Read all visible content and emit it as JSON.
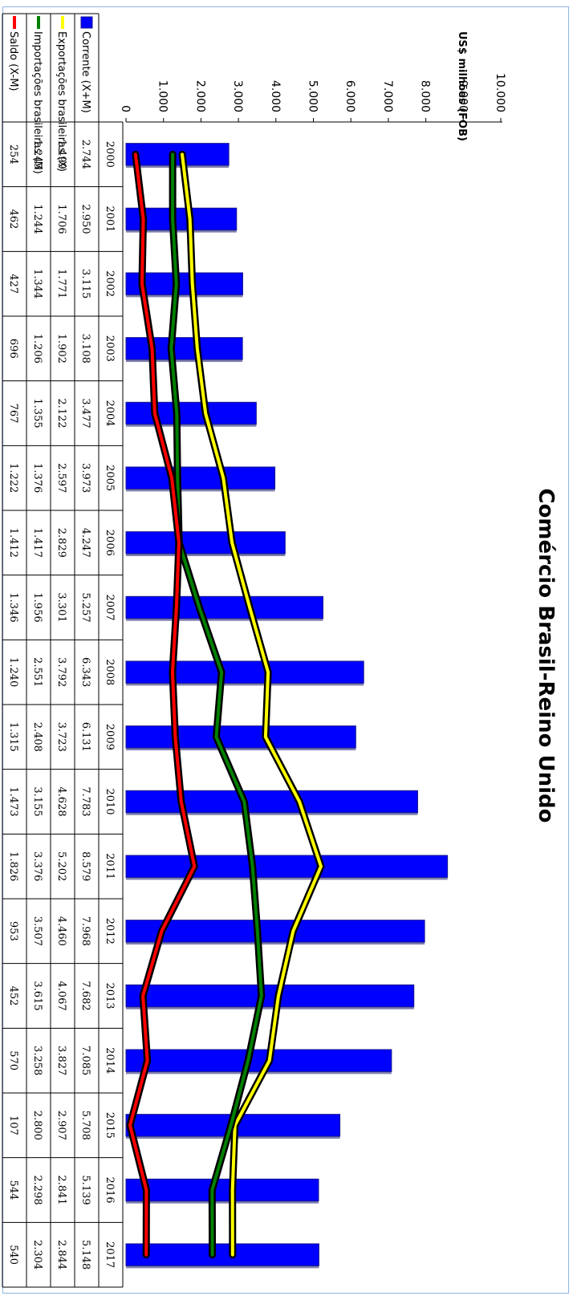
{
  "chart_data": {
    "type": "line",
    "title": "Comércio Brasil-Reino Unido",
    "ylabel": "US$ milhões (FOB)",
    "ylim": [
      0,
      10000
    ],
    "yticks": [
      "0",
      "1.000",
      "2.000",
      "3.000",
      "4.000",
      "5.000",
      "6.000",
      "7.000",
      "8.000",
      "9.000",
      "10.000"
    ],
    "categories": [
      "2000",
      "2001",
      "2002",
      "2003",
      "2004",
      "2005",
      "2006",
      "2007",
      "2008",
      "2009",
      "2010",
      "2011",
      "2012",
      "2013",
      "2014",
      "2015",
      "2016",
      "2017"
    ],
    "series": [
      {
        "name": "Corrente (X+M)",
        "kind": "bar",
        "color": "#0000ff",
        "values": [
          2744,
          2950,
          3115,
          3108,
          3477,
          3973,
          4247,
          5257,
          6343,
          6131,
          7783,
          8579,
          7968,
          7682,
          7085,
          5708,
          5139,
          5148
        ],
        "labels": [
          "2.744",
          "2.950",
          "3.115",
          "3.108",
          "3.477",
          "3.973",
          "4.247",
          "5.257",
          "6.343",
          "6.131",
          "7.783",
          "8.579",
          "7.968",
          "7.682",
          "7.085",
          "5.708",
          "5.139",
          "5.148"
        ]
      },
      {
        "name": "Exportações brasileiras (X)",
        "kind": "line",
        "color": "#ffff00",
        "values": [
          1499,
          1706,
          1771,
          1902,
          2122,
          2597,
          2829,
          3301,
          3792,
          3723,
          4628,
          5202,
          4460,
          4067,
          3827,
          2907,
          2841,
          2844
        ],
        "labels": [
          "1.499",
          "1.706",
          "1.771",
          "1.902",
          "2.122",
          "2.597",
          "2.829",
          "3.301",
          "3.792",
          "3.723",
          "4.628",
          "5.202",
          "4.460",
          "4.067",
          "3.827",
          "2.907",
          "2.841",
          "2.844"
        ]
      },
      {
        "name": "Importações brasileiras (M)",
        "kind": "line",
        "color": "#008000",
        "values": [
          1245,
          1244,
          1344,
          1206,
          1355,
          1376,
          1417,
          1956,
          2551,
          2408,
          3155,
          3376,
          3507,
          3615,
          3258,
          2800,
          2298,
          2304
        ],
        "labels": [
          "1.245",
          "1.244",
          "1.344",
          "1.206",
          "1.355",
          "1.376",
          "1.417",
          "1.956",
          "2.551",
          "2.408",
          "3.155",
          "3.376",
          "3.507",
          "3.615",
          "3.258",
          "2.800",
          "2.298",
          "2.304"
        ]
      },
      {
        "name": "Saldo (X-M)",
        "kind": "line",
        "color": "#ff0000",
        "values": [
          254,
          462,
          427,
          696,
          767,
          1222,
          1412,
          1346,
          1240,
          1315,
          1473,
          1826,
          953,
          452,
          570,
          107,
          544,
          540
        ],
        "labels": [
          "254",
          "462",
          "427",
          "696",
          "767",
          "1.222",
          "1.412",
          "1.346",
          "1.240",
          "1.315",
          "1.473",
          "1.826",
          "953",
          "452",
          "570",
          "107",
          "544",
          "540"
        ]
      }
    ],
    "legend": "bottom-table",
    "grid": false
  }
}
